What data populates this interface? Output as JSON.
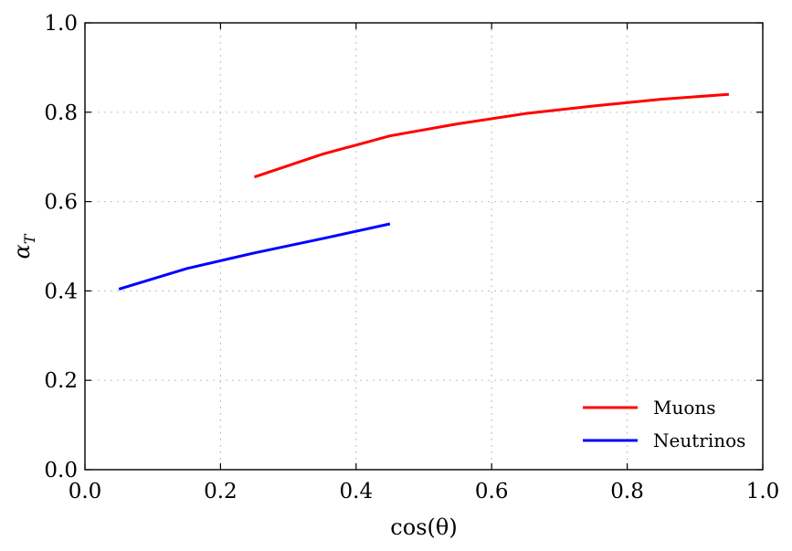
{
  "chart_data": {
    "type": "line",
    "xlabel": "cos(θ)",
    "ylabel": "α_T",
    "xlim": [
      0.0,
      1.0
    ],
    "ylim": [
      0.0,
      1.0
    ],
    "xticks": [
      0.0,
      0.2,
      0.4,
      0.6,
      0.8,
      1.0
    ],
    "yticks": [
      0.0,
      0.2,
      0.4,
      0.6,
      0.8,
      1.0
    ],
    "xtick_labels": [
      "0.0",
      "0.2",
      "0.4",
      "0.6",
      "0.8",
      "1.0"
    ],
    "ytick_labels": [
      "0.0",
      "0.2",
      "0.4",
      "0.6",
      "0.8",
      "1.0"
    ],
    "grid": true,
    "legend_position": "bottom-right",
    "series": [
      {
        "name": "Muons",
        "color": "#ff0000",
        "x": [
          0.25,
          0.35,
          0.45,
          0.55,
          0.65,
          0.75,
          0.85,
          0.95
        ],
        "y": [
          0.655,
          0.706,
          0.747,
          0.774,
          0.797,
          0.814,
          0.829,
          0.84
        ]
      },
      {
        "name": "Neutrinos",
        "color": "#0000ff",
        "x": [
          0.05,
          0.15,
          0.25,
          0.35,
          0.45
        ],
        "y": [
          0.404,
          0.45,
          0.485,
          0.517,
          0.55
        ]
      }
    ]
  }
}
